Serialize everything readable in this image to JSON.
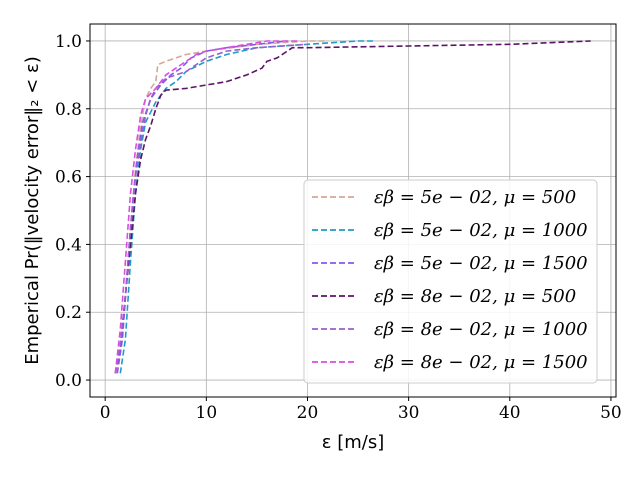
{
  "chart_data": {
    "type": "line",
    "title": "",
    "xlabel": "ε [m/s]",
    "ylabel": "Emperical Pr(‖velocity error‖₂ < ε)",
    "xlim": [
      -1.5,
      50.5
    ],
    "ylim": [
      -0.05,
      1.05
    ],
    "xticks": [
      0,
      10,
      20,
      30,
      40,
      50
    ],
    "yticks": [
      0.0,
      0.2,
      0.4,
      0.6,
      0.8,
      1.0
    ],
    "xtick_labels": [
      "0",
      "10",
      "20",
      "30",
      "40",
      "50"
    ],
    "ytick_labels": [
      "0.0",
      "0.2",
      "0.4",
      "0.6",
      "0.8",
      "1.0"
    ],
    "grid": true,
    "legend_position": "bottom-right",
    "series": [
      {
        "name": "εβ = 5e − 02, μ = 500",
        "color": "#d4a896",
        "x": [
          1.0,
          1.5,
          2.0,
          2.5,
          3.0,
          3.5,
          4.0,
          4.5,
          5.0,
          5.2,
          6.0,
          8.0,
          10.0,
          15.0,
          20.0,
          22.0
        ],
        "y": [
          0.02,
          0.08,
          0.25,
          0.45,
          0.62,
          0.75,
          0.83,
          0.86,
          0.88,
          0.93,
          0.94,
          0.96,
          0.97,
          0.99,
          1.0,
          1.0
        ]
      },
      {
        "name": "εβ = 5e − 02, μ = 1000",
        "color": "#1f9bc7",
        "x": [
          1.5,
          2.0,
          2.5,
          3.0,
          3.5,
          4.0,
          5.0,
          6.0,
          7.0,
          8.0,
          10.0,
          12.0,
          15.0,
          20.0,
          25.0,
          26.5
        ],
        "y": [
          0.02,
          0.12,
          0.35,
          0.55,
          0.68,
          0.76,
          0.82,
          0.86,
          0.88,
          0.91,
          0.94,
          0.96,
          0.98,
          0.99,
          1.0,
          1.0
        ]
      },
      {
        "name": "εβ = 5e − 02, μ = 1500",
        "color": "#8b55f0",
        "x": [
          1.2,
          1.7,
          2.2,
          2.7,
          3.2,
          3.7,
          4.5,
          5.5,
          6.5,
          7.5,
          8.5,
          10.0,
          12.0,
          15.0,
          18.0
        ],
        "y": [
          0.02,
          0.12,
          0.32,
          0.52,
          0.66,
          0.76,
          0.83,
          0.87,
          0.9,
          0.92,
          0.95,
          0.97,
          0.98,
          0.99,
          1.0
        ]
      },
      {
        "name": "εβ = 8e − 02, μ = 500",
        "color": "#5b1466",
        "x": [
          1.0,
          1.5,
          2.0,
          2.5,
          3.0,
          3.5,
          4.0,
          4.5,
          5.0,
          5.5,
          6.0,
          8.0,
          10.0,
          12.0,
          14.0,
          15.5,
          16.0,
          17.0,
          18.0,
          18.5,
          20.0,
          30.0,
          40.0,
          48.0
        ],
        "y": [
          0.02,
          0.1,
          0.25,
          0.4,
          0.55,
          0.65,
          0.71,
          0.75,
          0.8,
          0.84,
          0.855,
          0.86,
          0.87,
          0.88,
          0.9,
          0.92,
          0.94,
          0.95,
          0.97,
          0.98,
          0.98,
          0.985,
          0.99,
          1.0
        ]
      },
      {
        "name": "εβ = 8e − 02, μ = 1000",
        "color": "#9a5fd0",
        "x": [
          1.0,
          1.5,
          2.0,
          2.5,
          3.0,
          3.5,
          4.0,
          4.5,
          5.0,
          6.0,
          7.0,
          8.0,
          9.0,
          10.0,
          12.0,
          15.0,
          20.0
        ],
        "y": [
          0.02,
          0.1,
          0.25,
          0.45,
          0.6,
          0.7,
          0.78,
          0.83,
          0.86,
          0.89,
          0.9,
          0.91,
          0.93,
          0.95,
          0.97,
          0.98,
          0.99
        ]
      },
      {
        "name": "εβ = 8e − 02, μ = 1500",
        "color": "#d84ee0",
        "x": [
          1.0,
          1.5,
          2.0,
          2.5,
          3.0,
          3.5,
          4.0,
          5.0,
          6.0,
          7.0,
          8.0,
          9.0,
          10.0,
          12.0,
          14.0,
          16.0,
          18.0,
          19.0
        ],
        "y": [
          0.02,
          0.15,
          0.35,
          0.55,
          0.68,
          0.78,
          0.83,
          0.86,
          0.9,
          0.92,
          0.94,
          0.96,
          0.97,
          0.98,
          0.99,
          1.0,
          1.0,
          1.0
        ]
      }
    ]
  }
}
